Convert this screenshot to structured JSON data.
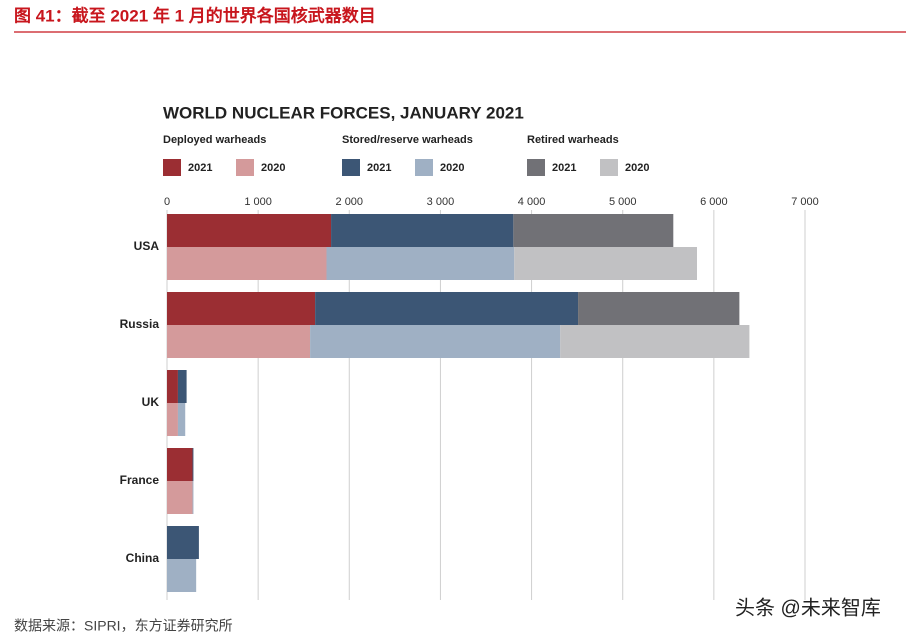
{
  "header": {
    "title": "图 41：截至 2021 年 1 月的世界各国核武器数目"
  },
  "chart_data": {
    "type": "bar",
    "orientation": "horizontal",
    "stacked": true,
    "title": "WORLD NUCLEAR FORCES, JANUARY 2021",
    "categories": [
      "USA",
      "Russia",
      "UK",
      "France",
      "China"
    ],
    "groups": [
      {
        "name": "Deployed warheads",
        "series": [
          {
            "name": "2021",
            "color": "#9b2e33",
            "values": [
              1800,
              1625,
              120,
              280,
              0
            ]
          },
          {
            "name": "2020",
            "color": "#d49a9b",
            "values": [
              1750,
              1570,
              120,
              280,
              0
            ]
          }
        ]
      },
      {
        "name": "Stored/reserve warheads",
        "series": [
          {
            "name": "2021",
            "color": "#3c5675",
            "values": [
              2000,
              2885,
              95,
              10,
              350
            ]
          },
          {
            "name": "2020",
            "color": "#9fb0c4",
            "values": [
              2060,
              2745,
              80,
              10,
              320
            ]
          }
        ]
      },
      {
        "name": "Retired warheads",
        "series": [
          {
            "name": "2021",
            "color": "#717176",
            "values": [
              1755,
              1770,
              0,
              0,
              0
            ]
          },
          {
            "name": "2020",
            "color": "#c1c1c3",
            "values": [
              2005,
              2075,
              0,
              0,
              0
            ]
          }
        ]
      }
    ],
    "xlim": [
      0,
      7000
    ],
    "xticks": [
      0,
      {
        "value": 1000,
        "label": "1 000"
      },
      {
        "value": 2000,
        "label": "2 000"
      },
      {
        "value": 3000,
        "label": "3 000"
      },
      {
        "value": 4000,
        "label": "4 000"
      },
      {
        "value": 5000,
        "label": "5 000"
      },
      {
        "value": 6000,
        "label": "6 000"
      },
      {
        "value": 7000,
        "label": "7 000"
      }
    ],
    "grid": true
  },
  "footer": {
    "source": "数据来源：SIPRI，东方证券研究所",
    "watermark": "头条 @未来智库"
  }
}
